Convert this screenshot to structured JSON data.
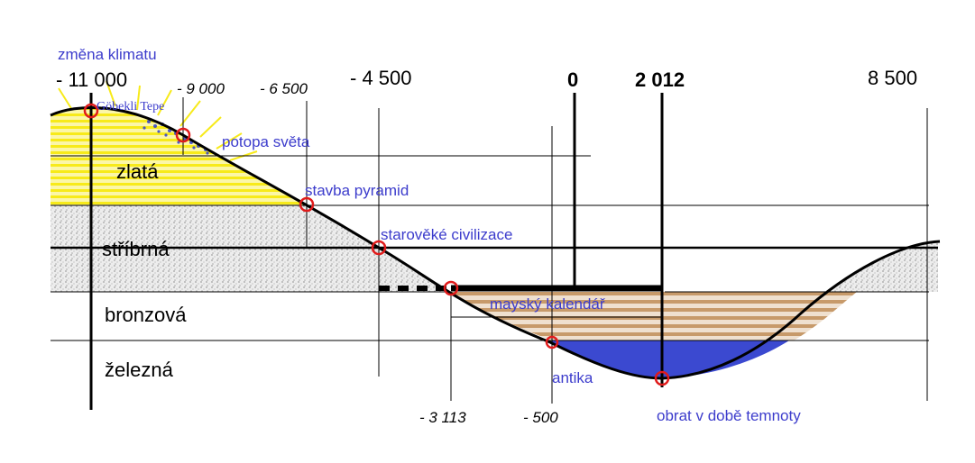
{
  "years": {
    "y_11000": "- 11 000",
    "y_9000": "- 9 000",
    "y_6500": "- 6 500",
    "y_4500": "- 4 500",
    "y_0": "0",
    "y_2012": "2 012",
    "y_8500": "8 500",
    "y_3113": "- 3 113",
    "y_500": "- 500"
  },
  "ages": {
    "golden": "zlatá",
    "silver": "stříbrná",
    "bronze": "bronzová",
    "iron": "železná"
  },
  "events": {
    "climate_change": "změna klimatu",
    "gobekli_tepe": "Göbekli Tepe",
    "flood": "potopa světa",
    "pyramids": "stavba pyramid",
    "ancient_civilizations": "starověké civilizace",
    "mayan_calendar": "mayský kalendář",
    "antiquity": "antika",
    "turn_dark_age": "obrat v době temnoty"
  },
  "colors": {
    "golden": "#f7ea1a",
    "silver": "#c9c9c9",
    "bronze": "#c79a6a",
    "iron": "#3b49d0",
    "event_text": "#3c3ccc",
    "marker": "#e01b1b"
  }
}
